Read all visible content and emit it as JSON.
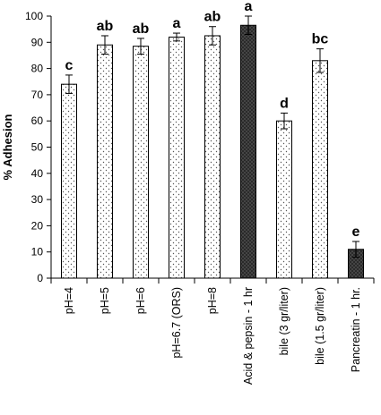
{
  "chart_data": {
    "type": "bar",
    "title": "",
    "xlabel": "",
    "ylabel": "% Adhesion",
    "ylim": [
      0,
      100
    ],
    "yticks": [
      0,
      10,
      20,
      30,
      40,
      50,
      60,
      70,
      80,
      90,
      100
    ],
    "grid": false,
    "categories": [
      "pH=4",
      "pH=5",
      "pH=6",
      "pH=6.7 (ORS)",
      "pH=8",
      "Acid & pepsin - 1 hr",
      "bile (3 gr/liter)",
      "bile (1.5 gr/liter)",
      "Pancreatin - 1 hr."
    ],
    "values": [
      74,
      89,
      88.5,
      92,
      92.5,
      96.5,
      60,
      83,
      11
    ],
    "errors": [
      3.5,
      3.5,
      3,
      1.5,
      3.5,
      3.5,
      3,
      4.5,
      3
    ],
    "significance_letters": [
      "c",
      "ab",
      "ab",
      "a",
      "ab",
      "a",
      "d",
      "bc",
      "e"
    ],
    "bar_fill": [
      "dotted",
      "dotted",
      "dotted",
      "dotted",
      "dotted",
      "dark",
      "dotted",
      "dotted",
      "dark"
    ],
    "colors": {
      "dotted_dot": "#555555",
      "dark_fill": "#2a2a2a",
      "axis": "#000000"
    }
  }
}
